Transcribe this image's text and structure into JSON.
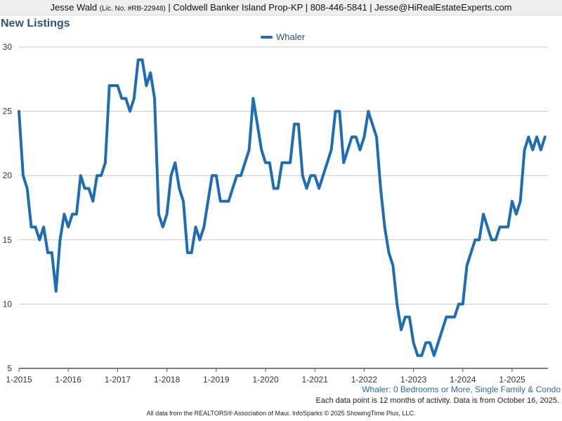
{
  "header": {
    "agent_name": "Jesse Wald",
    "license": "(Lic. No. #RB-22948)",
    "company_contact": "| Coldwell Banker Island Prop-KP | 808-446-5841 | Jesse@HiRealEstateExperts.com"
  },
  "chart_data": {
    "type": "line",
    "title": "New Listings",
    "xlabel": "",
    "ylabel": "",
    "ylim": [
      5,
      30
    ],
    "yticks": [
      5,
      10,
      15,
      20,
      25,
      30
    ],
    "xticks": [
      "1-2015",
      "1-2016",
      "1-2017",
      "1-2018",
      "1-2019",
      "1-2020",
      "1-2021",
      "1-2022",
      "1-2023",
      "1-2024",
      "1-2025"
    ],
    "grid": true,
    "legend_position": "top-center",
    "x_start": "2015-01",
    "x_end": "2025-09",
    "series": [
      {
        "name": "Whaler",
        "color": "#1f6db3",
        "values": [
          25,
          20,
          19,
          16,
          16,
          15,
          16,
          14,
          14,
          11,
          15,
          17,
          16,
          17,
          17,
          20,
          19,
          19,
          18,
          20,
          20,
          21,
          27,
          27,
          27,
          26,
          26,
          25,
          26,
          29,
          29,
          27,
          28,
          26,
          17,
          16,
          17,
          20,
          21,
          19,
          18,
          14,
          14,
          16,
          15,
          16,
          18,
          20,
          20,
          18,
          18,
          18,
          19,
          20,
          20,
          21,
          22,
          26,
          24,
          22,
          21,
          21,
          19,
          19,
          21,
          21,
          21,
          24,
          24,
          20,
          19,
          20,
          20,
          19,
          20,
          21,
          22,
          25,
          25,
          21,
          22,
          23,
          23,
          22,
          23,
          25,
          24,
          23,
          19,
          16,
          14,
          13,
          10,
          8,
          9,
          9,
          7,
          6,
          6,
          7,
          7,
          6,
          7,
          8,
          9,
          9,
          9,
          10,
          10,
          13,
          14,
          15,
          15,
          17,
          16,
          15,
          15,
          16,
          16,
          16,
          18,
          17,
          18,
          22,
          23,
          22,
          23,
          22,
          23
        ]
      }
    ]
  },
  "footer": {
    "subtitle": "Whaler: 0 Bedrooms or More, Single Family & Condo",
    "note": "Each data point is 12 months of activity. Data is from October 16, 2025.",
    "credit": "All data from the REALTORS® Association of Maui. InfoSparks © 2025 ShowingTime Plus, LLC."
  }
}
